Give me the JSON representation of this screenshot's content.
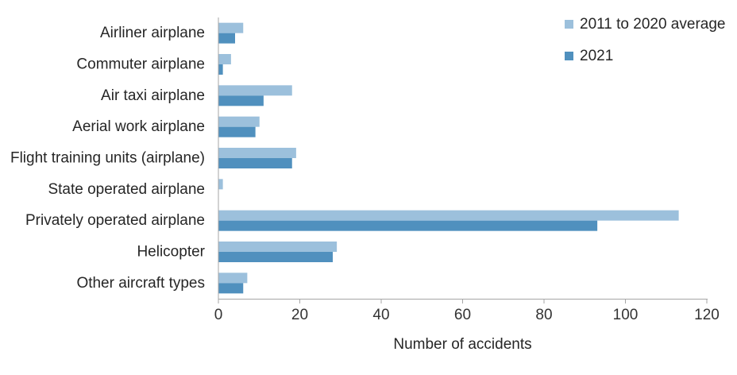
{
  "chart_data": {
    "type": "bar",
    "orientation": "horizontal",
    "title": "",
    "xlabel": "Number of accidents",
    "ylabel": "",
    "xlim": [
      0,
      120
    ],
    "xticks": [
      0,
      20,
      40,
      60,
      80,
      100,
      120
    ],
    "grid": false,
    "legend_position": "top-right",
    "categories": [
      "Airliner airplane",
      "Commuter airplane",
      "Air taxi airplane",
      "Aerial work airplane",
      "Flight training units (airplane)",
      "State operated airplane",
      "Privately operated airplane",
      "Helicopter",
      "Other aircraft types"
    ],
    "series": [
      {
        "name": "2011 to 2020 average",
        "color": "#9CC0DC",
        "values": [
          6,
          3,
          18,
          10,
          19,
          1,
          113,
          29,
          7
        ]
      },
      {
        "name": "2021",
        "color": "#5090BE",
        "values": [
          4,
          1,
          11,
          9,
          18,
          0,
          93,
          28,
          6
        ]
      }
    ],
    "colors": {
      "axis": "#A6A6A6",
      "text": "#262626",
      "tick_text": "#333333"
    }
  }
}
